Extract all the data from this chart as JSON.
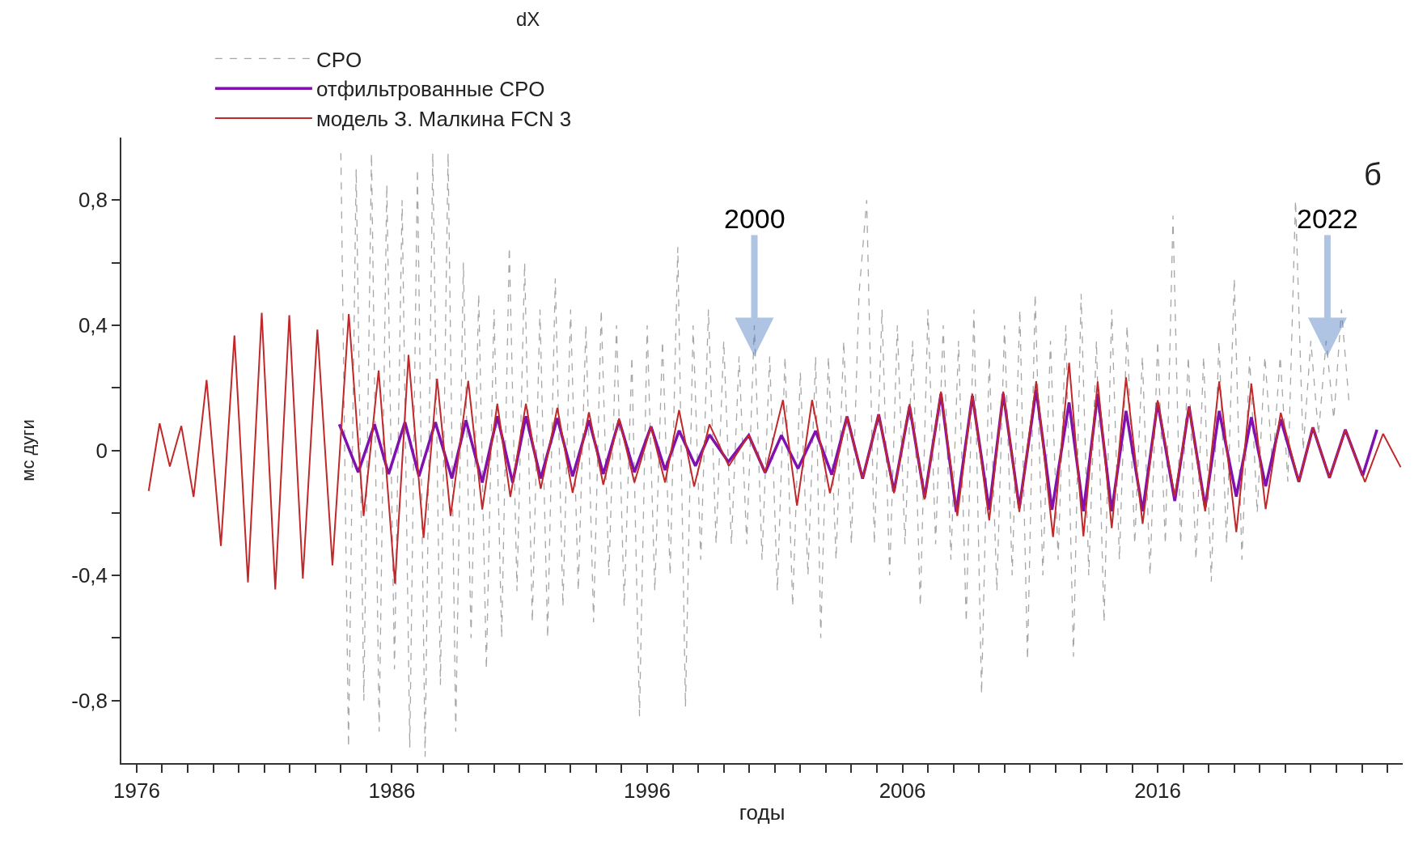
{
  "chart_data": {
    "type": "line",
    "title": "dX",
    "xlabel": "годы",
    "ylabel": "мс дуги",
    "xlim": [
      1975.4,
      2025.6
    ],
    "ylim": [
      -1.0,
      1.0
    ],
    "xticks": [
      1976,
      {
        "value": 1977,
        "label": null
      },
      {
        "value": 1978,
        "label": null
      },
      {
        "value": 1979,
        "label": null
      },
      {
        "value": 1980,
        "label": null
      },
      {
        "value": 1981,
        "label": null
      },
      {
        "value": 1982,
        "label": null
      },
      {
        "value": 1983,
        "label": null
      },
      {
        "value": 1984,
        "label": null
      },
      {
        "value": 1985,
        "label": null
      },
      1986,
      {
        "value": 1987,
        "label": null
      },
      {
        "value": 1988,
        "label": null
      },
      {
        "value": 1989,
        "label": null
      },
      {
        "value": 1990,
        "label": null
      },
      {
        "value": 1991,
        "label": null
      },
      {
        "value": 1992,
        "label": null
      },
      {
        "value": 1993,
        "label": null
      },
      {
        "value": 1994,
        "label": null
      },
      {
        "value": 1995,
        "label": null
      },
      1996,
      {
        "value": 1997,
        "label": null
      },
      {
        "value": 1998,
        "label": null
      },
      {
        "value": 1999,
        "label": null
      },
      {
        "value": 2000,
        "label": null
      },
      {
        "value": 2001,
        "label": null
      },
      {
        "value": 2002,
        "label": null
      },
      {
        "value": 2003,
        "label": null
      },
      {
        "value": 2004,
        "label": null
      },
      {
        "value": 2005,
        "label": null
      },
      2006,
      {
        "value": 2007,
        "label": null
      },
      {
        "value": 2008,
        "label": null
      },
      {
        "value": 2009,
        "label": null
      },
      {
        "value": 2010,
        "label": null
      },
      {
        "value": 2011,
        "label": null
      },
      {
        "value": 2012,
        "label": null
      },
      {
        "value": 2013,
        "label": null
      },
      {
        "value": 2014,
        "label": null
      },
      {
        "value": 2015,
        "label": null
      },
      2016,
      {
        "value": 2017,
        "label": null
      },
      {
        "value": 2018,
        "label": null
      },
      {
        "value": 2019,
        "label": null
      },
      {
        "value": 2020,
        "label": null
      },
      {
        "value": 2021,
        "label": null
      },
      {
        "value": 2022,
        "label": null
      },
      {
        "value": 2023,
        "label": null
      },
      {
        "value": 2024,
        "label": null
      },
      {
        "value": 2025,
        "label": null
      }
    ],
    "yticks": [
      {
        "value": -0.8,
        "label": "-0,8"
      },
      {
        "value": -0.6,
        "label": null
      },
      {
        "value": -0.4,
        "label": "-0,4"
      },
      {
        "value": -0.2,
        "label": null
      },
      0,
      {
        "value": 0.2,
        "label": null
      },
      {
        "value": 0.4,
        "label": "0,4"
      },
      {
        "value": 0.6,
        "label": null
      },
      {
        "value": 0.8,
        "label": "0,8"
      }
    ],
    "legend": "top left",
    "series": [
      {
        "name": "CPO",
        "color": "#a6a6a6",
        "line_style": "dashed",
        "x": [
          1984.0,
          1984.3,
          1984.6,
          1984.9,
          1985.2,
          1985.5,
          1985.8,
          1986.1,
          1986.4,
          1986.7,
          1987.0,
          1987.3,
          1987.6,
          1987.9,
          1988.2,
          1988.5,
          1988.8,
          1989.1,
          1989.4,
          1989.7,
          1990.0,
          1990.3,
          1990.6,
          1990.9,
          1991.2,
          1991.5,
          1991.8,
          1992.1,
          1992.4,
          1992.7,
          1993.0,
          1993.3,
          1993.6,
          1993.9,
          1994.2,
          1994.5,
          1994.8,
          1995.1,
          1995.4,
          1995.7,
          1996.0,
          1996.3,
          1996.6,
          1996.9,
          1997.2,
          1997.5,
          1997.8,
          1998.1,
          1998.4,
          1998.7,
          1999.0,
          1999.3,
          1999.6,
          1999.9,
          2000.2,
          2000.5,
          2000.8,
          2001.1,
          2001.4,
          2001.7,
          2002.0,
          2002.3,
          2002.6,
          2002.8,
          2003.1,
          2003.4,
          2003.7,
          2004.0,
          2004.3,
          2004.6,
          2004.9,
          2005.2,
          2005.5,
          2005.8,
          2006.1,
          2006.4,
          2006.7,
          2007.0,
          2007.3,
          2007.6,
          2007.9,
          2008.2,
          2008.5,
          2008.8,
          2009.1,
          2009.4,
          2009.7,
          2010.0,
          2010.3,
          2010.6,
          2010.9,
          2011.2,
          2011.5,
          2011.8,
          2012.1,
          2012.4,
          2012.7,
          2013.0,
          2013.3,
          2013.6,
          2013.9,
          2014.2,
          2014.5,
          2014.8,
          2015.1,
          2015.4,
          2015.7,
          2016.0,
          2016.3,
          2016.6,
          2016.9,
          2017.2,
          2017.5,
          2017.8,
          2018.1,
          2018.4,
          2018.7,
          2019.0,
          2019.3,
          2019.6,
          2019.9,
          2020.2,
          2020.5,
          2020.8,
          2021.1,
          2021.4,
          2021.7,
          2022.0,
          2022.3,
          2022.6,
          2022.9,
          2023.2,
          2023.5
        ],
        "values": [
          0.95,
          -0.95,
          0.9,
          -0.8,
          0.95,
          -0.9,
          0.85,
          -0.7,
          0.8,
          -0.95,
          0.9,
          -0.98,
          0.95,
          -0.75,
          0.95,
          -0.9,
          0.6,
          -0.6,
          0.5,
          -0.7,
          0.45,
          -0.6,
          0.65,
          -0.45,
          0.6,
          -0.55,
          0.45,
          -0.6,
          0.55,
          -0.5,
          0.45,
          -0.45,
          0.4,
          -0.55,
          0.45,
          -0.4,
          0.4,
          -0.5,
          0.3,
          -0.85,
          0.4,
          -0.45,
          0.35,
          -0.4,
          0.65,
          -0.82,
          0.4,
          -0.35,
          0.45,
          -0.3,
          0.35,
          -0.3,
          0.3,
          -0.3,
          0.4,
          -0.35,
          0.3,
          -0.45,
          0.3,
          -0.5,
          0.25,
          -0.4,
          0.3,
          -0.6,
          0.3,
          -0.35,
          0.35,
          -0.3,
          0.5,
          0.8,
          -0.3,
          0.45,
          -0.4,
          0.4,
          -0.3,
          0.35,
          -0.5,
          0.45,
          -0.3,
          0.4,
          -0.35,
          0.35,
          -0.55,
          0.45,
          -0.78,
          0.3,
          -0.45,
          0.4,
          -0.4,
          0.45,
          -0.67,
          0.5,
          -0.4,
          0.35,
          -0.35,
          0.4,
          -0.66,
          0.5,
          -0.4,
          0.35,
          -0.55,
          0.45,
          -0.35,
          0.4,
          -0.3,
          0.3,
          -0.4,
          0.35,
          -0.3,
          0.75,
          -0.3,
          0.3,
          -0.35,
          0.3,
          -0.42,
          0.35,
          -0.3,
          0.55,
          -0.35,
          0.3,
          -0.2,
          0.3,
          -0.05,
          0.3,
          -0.1,
          0.8,
          0.0,
          0.35,
          0.05,
          0.35,
          0.1,
          0.45,
          0.15
        ]
      },
      {
        "name": "отфильтрованные CPO",
        "color": "#8010b0",
        "line_style": "solid",
        "x": [
          1983.94,
          1984.68,
          1985.32,
          1985.87,
          1986.51,
          1987.06,
          1987.7,
          1988.35,
          1988.9,
          1989.54,
          1990.13,
          1990.73,
          1991.25,
          1991.83,
          1992.48,
          1993.08,
          1993.72,
          1994.28,
          1994.9,
          1995.5,
          1996.15,
          1996.7,
          1997.25,
          1997.89,
          1998.44,
          1999.18,
          1999.98,
          2000.62,
          2001.26,
          2001.91,
          2002.6,
          2003.23,
          2003.83,
          2004.44,
          2005.07,
          2005.67,
          2006.28,
          2006.87,
          2007.51,
          2008.11,
          2008.74,
          2009.4,
          2009.95,
          2010.58,
          2011.24,
          2011.86,
          2012.53,
          2013.09,
          2013.65,
          2014.2,
          2014.76,
          2015.41,
          2016.0,
          2016.67,
          2017.23,
          2017.86,
          2018.41,
          2019.08,
          2019.67,
          2020.23,
          2020.82,
          2021.53,
          2022.08,
          2022.73,
          2023.35,
          2024.03,
          2024.59
        ],
        "values": [
          0.083,
          -0.07,
          0.083,
          -0.076,
          0.09,
          -0.083,
          0.09,
          -0.09,
          0.096,
          -0.103,
          0.109,
          -0.103,
          0.109,
          -0.09,
          0.103,
          -0.083,
          0.096,
          -0.076,
          0.096,
          -0.07,
          0.076,
          -0.063,
          0.063,
          -0.05,
          0.05,
          -0.037,
          0.048,
          -0.071,
          0.048,
          -0.058,
          0.062,
          -0.078,
          0.108,
          -0.091,
          0.115,
          -0.131,
          0.141,
          -0.151,
          0.181,
          -0.197,
          0.174,
          -0.19,
          0.181,
          -0.184,
          0.194,
          -0.19,
          0.153,
          -0.195,
          0.18,
          -0.195,
          0.126,
          -0.195,
          0.153,
          -0.162,
          0.14,
          -0.182,
          0.126,
          -0.148,
          0.106,
          -0.115,
          0.099,
          -0.101,
          0.073,
          -0.088,
          0.066,
          -0.081,
          0.066
        ]
      },
      {
        "name": "модель З. Малкина FCN 3",
        "color": "#c0282a",
        "line_style": "solid",
        "x": [
          1976.47,
          1976.9,
          1977.3,
          1977.75,
          1978.23,
          1978.74,
          1979.3,
          1979.83,
          1980.36,
          1980.9,
          1981.43,
          1981.98,
          1982.51,
          1983.08,
          1983.67,
          1984.31,
          1984.89,
          1985.48,
          1986.12,
          1986.65,
          1987.24,
          1987.77,
          1988.3,
          1988.99,
          1989.54,
          1990.13,
          1990.64,
          1991.25,
          1991.83,
          1992.48,
          1993.08,
          1993.72,
          1994.28,
          1994.9,
          1995.5,
          1996.15,
          1996.7,
          1997.25,
          1997.84,
          1998.44,
          1999.2,
          1999.98,
          2000.62,
          2001.32,
          2001.87,
          2002.46,
          2003.16,
          2003.83,
          2004.44,
          2005.07,
          2005.67,
          2006.28,
          2006.87,
          2007.51,
          2008.15,
          2008.74,
          2009.4,
          2009.95,
          2010.58,
          2011.24,
          2011.9,
          2012.53,
          2013.09,
          2013.65,
          2014.2,
          2014.76,
          2015.41,
          2016.0,
          2016.67,
          2017.23,
          2017.86,
          2018.41,
          2019.08,
          2019.67,
          2020.23,
          2020.82,
          2021.53,
          2022.08,
          2022.73,
          2023.35,
          2024.12,
          2024.83,
          2025.52
        ],
        "values": [
          -0.13,
          0.086,
          -0.052,
          0.078,
          -0.149,
          0.225,
          -0.306,
          0.367,
          -0.422,
          0.44,
          -0.445,
          0.432,
          -0.41,
          0.386,
          -0.368,
          0.436,
          -0.21,
          0.255,
          -0.426,
          0.305,
          -0.28,
          0.229,
          -0.21,
          0.222,
          -0.189,
          0.149,
          -0.149,
          0.149,
          -0.123,
          0.136,
          -0.136,
          0.122,
          -0.11,
          0.102,
          -0.103,
          0.076,
          -0.103,
          0.129,
          -0.116,
          0.083,
          -0.05,
          0.048,
          -0.071,
          0.161,
          -0.177,
          0.161,
          -0.137,
          0.108,
          -0.091,
          0.115,
          -0.137,
          0.148,
          -0.157,
          0.188,
          -0.21,
          0.181,
          -0.224,
          0.188,
          -0.197,
          0.221,
          -0.277,
          0.28,
          -0.275,
          0.22,
          -0.249,
          0.233,
          -0.235,
          0.16,
          -0.148,
          0.14,
          -0.195,
          0.22,
          -0.262,
          0.213,
          -0.188,
          0.12,
          -0.101,
          0.073,
          -0.088,
          0.066,
          -0.101,
          0.053,
          -0.054
        ]
      }
    ],
    "annotations": [
      "б",
      {
        "text": "2000",
        "x": 2000.2,
        "y": 0.3
      },
      {
        "text": "2022",
        "x": 2022.65,
        "y": 0.3
      }
    ]
  }
}
